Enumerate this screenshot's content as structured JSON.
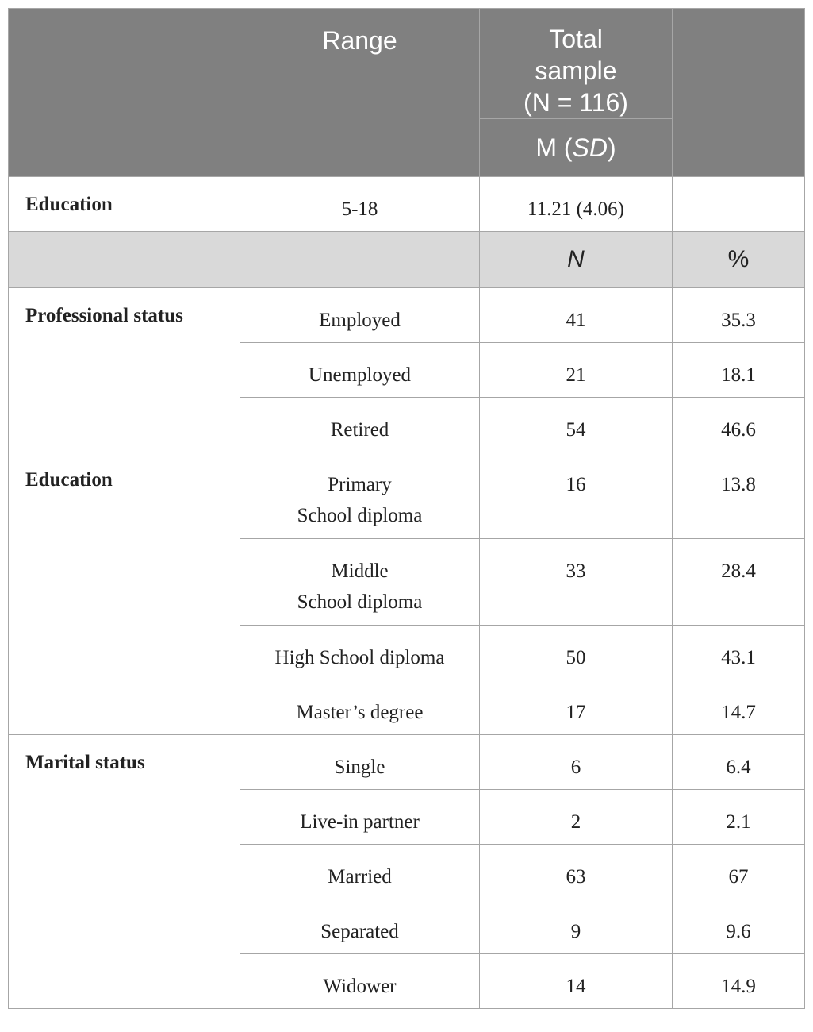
{
  "header": {
    "range": "Range",
    "total_sample": [
      "Total",
      "sample",
      "(N = 116)"
    ],
    "m_prefix": "M (",
    "m_sd": "SD",
    "m_suffix": ")"
  },
  "education_summary": {
    "label": "Education",
    "range": "5-18",
    "value": "11.21 (4.06)"
  },
  "subheader": {
    "n": "N",
    "pct": "%"
  },
  "groups": [
    {
      "label": "Professional status",
      "rows": [
        {
          "item": "Employed",
          "n": "41",
          "pct": "35.3"
        },
        {
          "item": "Unemployed",
          "n": "21",
          "pct": "18.1"
        },
        {
          "item": "Retired",
          "n": "54",
          "pct": "46.6"
        }
      ]
    },
    {
      "label": "Education",
      "rows": [
        {
          "item": [
            "Primary",
            "School diploma"
          ],
          "n": "16",
          "pct": "13.8"
        },
        {
          "item": [
            "Middle",
            "School diploma"
          ],
          "n": "33",
          "pct": "28.4"
        },
        {
          "item": "High School diploma",
          "n": "50",
          "pct": "43.1"
        },
        {
          "item": "Master’s degree",
          "n": "17",
          "pct": "14.7"
        }
      ]
    },
    {
      "label": "Marital status",
      "rows": [
        {
          "item": "Single",
          "n": "6",
          "pct": "6.4"
        },
        {
          "item": "Live-in partner",
          "n": "2",
          "pct": "2.1"
        },
        {
          "item": "Married",
          "n": "63",
          "pct": "67"
        },
        {
          "item": "Separated",
          "n": "9",
          "pct": "9.6"
        },
        {
          "item": "Widower",
          "n": "14",
          "pct": "14.9"
        }
      ]
    }
  ],
  "colors": {
    "header_bg": "#808080",
    "subheader_bg": "#d9d9d9",
    "border": "#a6a6a6"
  }
}
